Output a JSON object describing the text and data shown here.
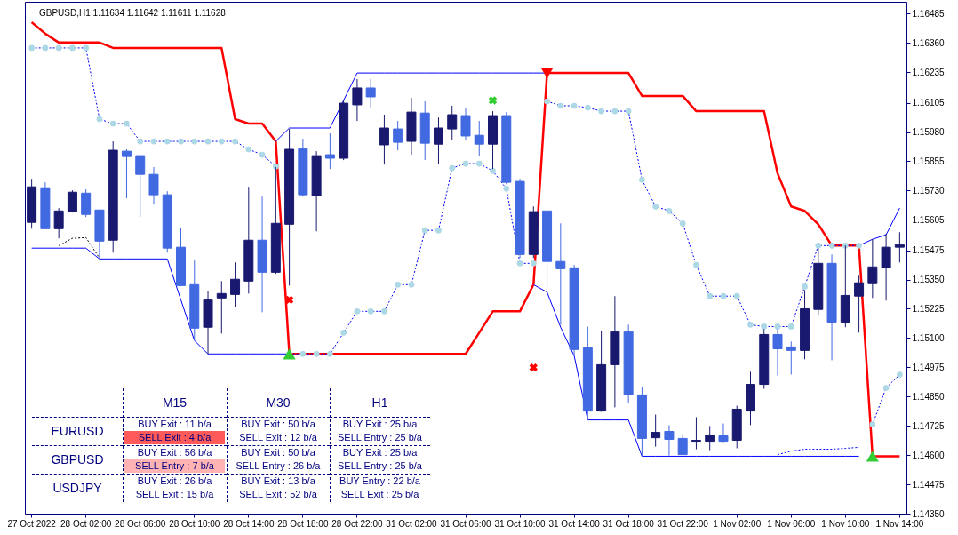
{
  "chart_data": {
    "type": "candlestick",
    "title": "GBPUSD,H1  1.11634 1.11642 1.11611 1.11628",
    "categories": [
      "27 Oct 2022",
      null,
      null,
      null,
      "28 Oct 02:00",
      null,
      null,
      null,
      "28 Oct 06:00",
      null,
      null,
      null,
      "28 Oct 10:00",
      null,
      null,
      null,
      "28 Oct 14:00",
      null,
      null,
      null,
      "28 Oct 18:00",
      null,
      null,
      null,
      "28 Oct 22:00",
      null,
      null,
      null,
      "31 Oct 02:00",
      null,
      null,
      null,
      "31 Oct 06:00",
      null,
      null,
      null,
      "31 Oct 10:00",
      null,
      null,
      null,
      "31 Oct 14:00",
      null,
      null,
      null,
      "31 Oct 18:00",
      null,
      null,
      null,
      "31 Oct 22:00",
      null,
      null,
      null,
      "1 Nov 02:00",
      null,
      null,
      null,
      "1 Nov 06:00",
      null,
      null,
      null,
      "1 Nov 10:00",
      null,
      null,
      null,
      "1 Nov 14:00"
    ],
    "ohlc": [
      [
        1.15594,
        1.1578,
        1.15567,
        1.15746
      ],
      [
        1.15742,
        1.15765,
        1.15567,
        1.15567
      ],
      [
        1.15567,
        1.15655,
        1.15526,
        1.15643
      ],
      [
        1.1564,
        1.15731,
        1.15636,
        1.15723
      ],
      [
        1.15719,
        1.15735,
        1.15617,
        1.15628
      ],
      [
        1.15647,
        1.15647,
        1.15438,
        1.15514
      ],
      [
        1.15518,
        1.1594,
        1.15465,
        1.15902
      ],
      [
        1.15898,
        1.15906,
        1.15697,
        1.15875
      ],
      [
        1.15879,
        1.15883,
        1.15617,
        1.15799
      ],
      [
        1.15799,
        1.1583,
        1.1567,
        1.15712
      ],
      [
        1.15712,
        1.15727,
        1.15465,
        1.15484
      ],
      [
        1.15488,
        1.15571,
        1.15324,
        1.15324
      ],
      [
        1.15328,
        1.15431,
        1.15089,
        1.15142
      ],
      [
        1.15146,
        1.15301,
        1.15032,
        1.15263
      ],
      [
        1.15271,
        1.15343,
        1.15119,
        1.1529
      ],
      [
        1.15286,
        1.15423,
        1.15233,
        1.15351
      ],
      [
        1.15343,
        1.15746,
        1.1529,
        1.15518
      ],
      [
        1.15518,
        1.15704,
        1.1521,
        1.15381
      ],
      [
        1.15381,
        1.1583,
        1.15374,
        1.1559
      ],
      [
        1.15586,
        1.15993,
        1.15324,
        1.15906
      ],
      [
        1.15909,
        1.15951,
        1.15704,
        1.15712
      ],
      [
        1.15708,
        1.15898,
        1.15556,
        1.15879
      ],
      [
        1.15883,
        1.15974,
        1.15822,
        1.15868
      ],
      [
        1.15868,
        1.16115,
        1.1586,
        1.16103
      ],
      [
        1.16096,
        1.16206,
        1.16027,
        1.16168
      ],
      [
        1.16168,
        1.16206,
        1.1608,
        1.1613
      ],
      [
        1.15925,
        1.16054,
        1.15841,
        1.15997
      ],
      [
        1.15993,
        1.16027,
        1.15902,
        1.15936
      ],
      [
        1.1594,
        1.16126,
        1.15883,
        1.16065
      ],
      [
        1.16061,
        1.16111,
        1.1586,
        1.15932
      ],
      [
        1.15928,
        1.16042,
        1.15845,
        1.15997
      ],
      [
        1.15993,
        1.16092,
        1.15944,
        1.16054
      ],
      [
        1.1605,
        1.16084,
        1.15944,
        1.15963
      ],
      [
        1.15966,
        1.16027,
        1.15879,
        1.15928
      ],
      [
        1.15928,
        1.16069,
        1.15822,
        1.1605
      ],
      [
        1.1605,
        1.16065,
        1.15757,
        1.15765
      ],
      [
        1.15769,
        1.1578,
        1.15442,
        1.15457
      ],
      [
        1.15457,
        1.15662,
        1.15442,
        1.1564
      ],
      [
        1.15643,
        1.15643,
        1.15309,
        1.15427
      ],
      [
        1.15427,
        1.1559,
        1.15157,
        1.15396
      ],
      [
        1.154,
        1.15412,
        1.15024,
        1.15051
      ],
      [
        1.15058,
        1.15149,
        1.1475,
        1.14788
      ],
      [
        1.14788,
        1.1513,
        1.14785,
        1.14986
      ],
      [
        1.14986,
        1.15279,
        1.14804,
        1.15127
      ],
      [
        1.15127,
        1.15157,
        1.14823,
        1.14857
      ],
      [
        1.14857,
        1.14891,
        1.14595,
        1.14671
      ],
      [
        1.14674,
        1.14773,
        1.14636,
        1.14697
      ],
      [
        1.14701,
        1.14728,
        1.14598,
        1.14667
      ],
      [
        1.14671,
        1.14686,
        1.14602,
        1.14602
      ],
      [
        1.14659,
        1.14762,
        1.14625,
        1.14663
      ],
      [
        1.14659,
        1.14724,
        1.14621,
        1.14686
      ],
      [
        1.14682,
        1.14735,
        1.14655,
        1.14659
      ],
      [
        1.14663,
        1.14811,
        1.14629,
        1.14796
      ],
      [
        1.14788,
        1.14956,
        1.14728,
        1.14902
      ],
      [
        1.14902,
        1.15138,
        1.14883,
        1.15115
      ],
      [
        1.15115,
        1.15138,
        1.1494,
        1.15054
      ],
      [
        1.15062,
        1.15085,
        1.14944,
        1.15047
      ],
      [
        1.15047,
        1.15305,
        1.15009,
        1.15225
      ],
      [
        1.15222,
        1.15484,
        1.15199,
        1.15419
      ],
      [
        1.15419,
        1.15457,
        1.15005,
        1.15168
      ],
      [
        1.15168,
        1.15495,
        1.15146,
        1.15282
      ],
      [
        1.15279,
        1.15366,
        1.15123,
        1.15336
      ],
      [
        1.15332,
        1.15522,
        1.15271,
        1.15404
      ],
      [
        1.154,
        1.15545,
        1.1526,
        1.15488
      ],
      [
        1.15488,
        1.15552,
        1.15423,
        1.15499
      ]
    ],
    "colors": [
      "#191970",
      "#4169e1",
      "#191970",
      "#191970",
      "#4169e1",
      "#4169e1",
      "#191970",
      "#4169e1",
      "#4169e1",
      "#4169e1",
      "#4169e1",
      "#4169e1",
      "#4169e1",
      "#191970",
      "#191970",
      "#191970",
      "#191970",
      "#4169e1",
      "#191970",
      "#191970",
      "#4169e1",
      "#191970",
      "#4169e1",
      "#191970",
      "#191970",
      "#4169e1",
      "#191970",
      "#4169e1",
      "#191970",
      "#4169e1",
      "#191970",
      "#191970",
      "#4169e1",
      "#4169e1",
      "#191970",
      "#4169e1",
      "#4169e1",
      "#191970",
      "#4169e1",
      "#4169e1",
      "#4169e1",
      "#4169e1",
      "#191970",
      "#191970",
      "#4169e1",
      "#4169e1",
      "#191970",
      "#4169e1",
      "#4169e1",
      "#191970",
      "#191970",
      "#4169e1",
      "#191970",
      "#191970",
      "#191970",
      "#4169e1",
      "#4169e1",
      "#191970",
      "#191970",
      "#4169e1",
      "#191970",
      "#191970",
      "#191970",
      "#191970",
      "#191970"
    ],
    "ylim": [
      1.1435,
      1.16536
    ],
    "yticks": [
      {
        "value": 1.1435,
        "label": "1.14350"
      },
      1.14475,
      {
        "value": 1.146,
        "label": "1.14600"
      },
      1.14725,
      {
        "value": 1.1485,
        "label": "1.14850"
      },
      1.14975,
      {
        "value": 1.151,
        "label": "1.15100"
      },
      1.15225,
      {
        "value": 1.1535,
        "label": "1.15350"
      },
      1.15475,
      1.15605,
      {
        "value": 1.1573,
        "label": "1.15730"
      },
      1.15855,
      {
        "value": 1.1598,
        "label": "1.15980"
      },
      1.16105,
      1.16235,
      {
        "value": 1.1636,
        "label": "1.16360"
      },
      1.16485
    ],
    "grid": false,
    "series": [
      {
        "type": "line",
        "color": "#ff0000",
        "values": [
          1.16449,
          1.164,
          1.16362,
          1.16362,
          1.16362,
          1.16362,
          1.16339,
          1.16339,
          1.16339,
          1.16339,
          1.16339,
          1.16339,
          1.16339,
          1.16339,
          1.16339,
          1.16035,
          1.16016,
          1.16016,
          1.1594,
          1.15032,
          1.15032,
          1.15032,
          1.15032,
          1.15032,
          1.15032,
          1.15032,
          1.15032,
          1.15032,
          1.15032,
          1.15032,
          1.15032,
          1.15032,
          1.15032,
          1.15123,
          1.15214,
          1.15214,
          1.15214,
          1.15328,
          1.16232,
          1.16232,
          1.16232,
          1.16232,
          1.16232,
          1.16232,
          1.16232,
          1.16134,
          1.16134,
          1.16134,
          1.16134,
          1.16069,
          1.16069,
          1.16069,
          1.16069,
          1.16069,
          1.16069,
          1.15803,
          1.15662,
          1.15643,
          1.15586,
          1.15495,
          1.15495,
          1.15495,
          1.14595,
          1.14595,
          1.14595
        ]
      },
      {
        "type": "line",
        "color": "#0000ff",
        "values": [
          null,
          null,
          null,
          null,
          null,
          null,
          null,
          null,
          null,
          null,
          null,
          null,
          null,
          null,
          null,
          null,
          null,
          null,
          1.1594,
          1.15997,
          1.15997,
          1.15997,
          1.15997,
          1.16115,
          1.16232,
          1.16232,
          1.16232,
          1.16232,
          1.16232,
          1.16232,
          1.16232,
          1.16232,
          1.16232,
          1.16232,
          1.16232,
          1.16232,
          1.16232,
          1.16232,
          1.16232,
          null,
          null,
          null,
          null,
          null,
          null,
          null,
          null,
          null,
          null,
          null,
          null,
          null,
          null,
          null,
          null,
          null,
          null,
          null,
          null,
          null,
          null,
          1.15495,
          1.15522,
          1.15541,
          1.15655
        ]
      },
      {
        "type": "line",
        "color": "#0000ff",
        "values": [
          1.15484,
          1.15484,
          1.15484,
          1.15484,
          1.15484,
          1.15438,
          1.15438,
          1.15438,
          1.15438,
          1.15438,
          1.15438,
          1.15263,
          1.15089,
          1.15032,
          1.15032,
          1.15032,
          1.15032,
          1.15032,
          1.15032,
          1.15032,
          null,
          null,
          null,
          null,
          null,
          null,
          null,
          null,
          null,
          null,
          null,
          null,
          null,
          null,
          null,
          null,
          null,
          1.15328,
          1.15296,
          1.15146,
          1.15024,
          1.1475,
          1.1475,
          1.1475,
          1.1475,
          1.14595,
          1.14595,
          1.14595,
          1.14595,
          1.14595,
          1.14595,
          1.14595,
          1.14595,
          1.14595,
          1.14595,
          1.14595,
          1.14595,
          1.14595,
          1.14595,
          1.14595,
          1.14595,
          1.14595,
          null,
          null,
          null
        ]
      },
      {
        "type": "line",
        "color": "#0000ff",
        "line_style": "dashed",
        "values": [
          1.16339,
          1.16339,
          1.16339,
          1.16339,
          1.16339,
          1.16035,
          1.16016,
          1.16016,
          1.1594,
          1.1594,
          1.1594,
          1.1594,
          1.1594,
          1.1594,
          1.1594,
          1.1594,
          1.15906,
          1.15883,
          1.15833,
          null,
          null,
          null,
          null,
          null,
          null,
          null,
          null,
          null,
          null,
          null,
          null,
          null,
          null,
          null,
          null,
          null,
          null,
          null,
          1.16111,
          1.16092,
          1.16092,
          1.16084,
          1.16069,
          1.16069,
          1.16069,
          1.15776,
          1.15662,
          1.15643,
          1.1559,
          1.15412,
          1.15279,
          1.15279,
          1.15279,
          1.15157,
          1.15149,
          1.15149,
          1.15149,
          1.1532,
          1.15495,
          1.15495,
          1.15495,
          1.15495,
          null,
          null,
          null
        ]
      },
      {
        "type": "line",
        "color": "#0000ff",
        "line_style": "dashed",
        "values": [
          null,
          null,
          null,
          null,
          null,
          null,
          null,
          null,
          null,
          null,
          null,
          null,
          null,
          null,
          null,
          null,
          null,
          null,
          null,
          1.15032,
          1.15032,
          1.15032,
          1.15032,
          1.15123,
          1.15214,
          1.15214,
          1.15214,
          1.15328,
          1.15328,
          1.1556,
          1.1556,
          1.15826,
          1.15845,
          1.15845,
          1.15814,
          1.15738,
          1.15419,
          1.15419,
          null,
          null,
          null,
          null,
          null,
          null,
          null,
          null,
          null,
          null,
          null,
          null,
          null,
          null,
          null,
          null,
          null,
          null,
          null,
          null,
          null,
          null,
          null,
          null,
          1.14731,
          1.14887,
          1.14944
        ]
      },
      {
        "type": "line",
        "color": "#0000ff",
        "line_style": "dashed",
        "values": [
          null,
          null,
          null,
          null,
          null,
          null,
          null,
          null,
          null,
          null,
          null,
          null,
          null,
          null,
          null,
          null,
          null,
          null,
          null,
          null,
          null,
          null,
          null,
          null,
          null,
          null,
          null,
          null,
          null,
          null,
          null,
          null,
          null,
          null,
          null,
          null,
          null,
          null,
          null,
          null,
          null,
          null,
          null,
          null,
          null,
          null,
          null,
          null,
          null,
          null,
          null,
          null,
          null,
          null,
          null,
          1.14602,
          1.14617,
          1.14625,
          1.14625,
          1.14625,
          1.14629,
          1.14633,
          null,
          null,
          null
        ]
      },
      {
        "type": "line",
        "color": "#000000",
        "line_style": "dashed",
        "values": [
          null,
          null,
          1.15495,
          1.15526,
          1.15529,
          1.15442,
          null,
          null,
          null,
          null,
          null,
          null,
          null,
          null,
          null,
          null,
          null,
          null,
          null,
          null,
          null,
          null,
          null,
          null,
          null,
          null,
          null,
          null,
          null,
          null,
          null,
          null,
          null,
          null,
          null,
          null,
          null,
          null,
          null,
          null,
          null,
          null,
          null,
          null,
          null,
          null,
          null,
          null,
          null,
          null,
          null,
          null,
          null,
          null,
          null,
          null,
          null,
          null,
          null,
          null,
          null,
          null,
          null,
          null,
          null
        ]
      },
      {
        "type": "scatter",
        "color": "#add8e6",
        "marker": "circle",
        "values": [
          1.16339,
          1.16339,
          1.16339,
          1.16339,
          1.16339,
          1.16035,
          1.16016,
          1.16016,
          1.1594,
          1.1594,
          1.1594,
          1.1594,
          1.1594,
          1.1594,
          1.1594,
          1.1594,
          1.15906,
          1.15883,
          1.15833,
          1.15032,
          1.15032,
          1.15032,
          1.15032,
          1.15123,
          1.15214,
          1.15214,
          1.15214,
          1.15328,
          1.15328,
          1.1556,
          1.1556,
          1.15826,
          1.15845,
          1.15845,
          1.15814,
          1.15738,
          1.15419,
          1.15419,
          1.16111,
          1.16092,
          1.16092,
          1.16084,
          1.16069,
          1.16069,
          1.16069,
          1.15776,
          1.15662,
          1.15643,
          1.1559,
          1.15412,
          1.15279,
          1.15279,
          1.15279,
          1.15157,
          1.15149,
          1.15149,
          1.15149,
          1.1532,
          1.15495,
          1.15495,
          1.15495,
          1.15495,
          1.14731,
          1.14887,
          1.14944
        ]
      },
      {
        "type": "scatter",
        "color": "#32cd32",
        "marker": "triangle",
        "values": [
          null,
          null,
          null,
          null,
          null,
          null,
          null,
          null,
          null,
          null,
          null,
          null,
          null,
          null,
          null,
          null,
          null,
          null,
          null,
          1.15032,
          null,
          null,
          null,
          null,
          null,
          null,
          null,
          null,
          null,
          null,
          null,
          null,
          null,
          null,
          null,
          null,
          null,
          null,
          null,
          null,
          null,
          null,
          null,
          null,
          null,
          null,
          null,
          null,
          null,
          null,
          null,
          null,
          null,
          null,
          null,
          null,
          null,
          null,
          null,
          null,
          null,
          null,
          1.14595,
          null,
          null
        ]
      },
      {
        "type": "scatter",
        "color": "#ff0000",
        "marker": "triangle",
        "values": [
          null,
          null,
          null,
          null,
          null,
          null,
          null,
          null,
          null,
          null,
          null,
          null,
          null,
          null,
          null,
          null,
          null,
          null,
          null,
          null,
          null,
          null,
          null,
          null,
          null,
          null,
          null,
          null,
          null,
          null,
          null,
          null,
          null,
          null,
          null,
          null,
          null,
          null,
          1.16232,
          null,
          null,
          null,
          null,
          null,
          null,
          null,
          null,
          null,
          null,
          null,
          null,
          null,
          null,
          null,
          null,
          null,
          null,
          null,
          null,
          null,
          null,
          null,
          null,
          null,
          null
        ]
      },
      {
        "type": "scatter",
        "color": "#32cd32",
        "marker": "cross",
        "values": [
          null,
          null,
          null,
          null,
          null,
          null,
          null,
          null,
          null,
          null,
          null,
          null,
          null,
          null,
          null,
          null,
          null,
          null,
          null,
          null,
          null,
          null,
          null,
          null,
          null,
          null,
          null,
          null,
          null,
          null,
          null,
          null,
          null,
          null,
          1.16115,
          null,
          null,
          null,
          null,
          null,
          null,
          null,
          null,
          null,
          null,
          null,
          null,
          null,
          null,
          null,
          null,
          null,
          null,
          null,
          null,
          null,
          null,
          null,
          null,
          null,
          null,
          null,
          null,
          null,
          null
        ]
      },
      {
        "type": "scatter",
        "color": "#ff0000",
        "marker": "cross",
        "values": [
          null,
          null,
          null,
          null,
          null,
          null,
          null,
          null,
          null,
          null,
          null,
          null,
          null,
          null,
          null,
          null,
          null,
          null,
          null,
          1.15263,
          null,
          null,
          null,
          null,
          null,
          null,
          null,
          null,
          null,
          null,
          null,
          null,
          null,
          null,
          null,
          null,
          null,
          1.14974,
          null,
          null,
          null,
          null,
          null,
          null,
          null,
          null,
          null,
          null,
          null,
          null,
          null,
          null,
          null,
          null,
          null,
          null,
          null,
          null,
          null,
          null,
          null,
          null,
          null,
          null,
          null
        ]
      }
    ],
    "annotations": [
      "M15",
      "M30",
      "H1",
      "EURUSD",
      "BUY Exit : 11 b/a",
      "SELL Exit : 4 b/a",
      "BUY Exit : 50 b/a",
      "SELL Exit : 12 b/a",
      "BUY Exit : 25 b/a",
      "SELL Entry : 25 b/a",
      "GBPUSD",
      "BUY Exit : 56 b/a",
      "SELL Entry : 7 b/a",
      "BUY Exit : 50 b/a",
      "SELL Entry : 26 b/a",
      "BUY Exit : 25 b/a",
      "SELL Entry : 25 b/a",
      "USDJPY",
      "BUY Exit : 26 b/a",
      "SELL Exit : 15 b/a",
      "BUY Exit : 13 b/a",
      "SELL Exit : 52 b/a",
      "BUY Entry : 22 b/a",
      "SELL Exit : 25 b/a"
    ]
  }
}
